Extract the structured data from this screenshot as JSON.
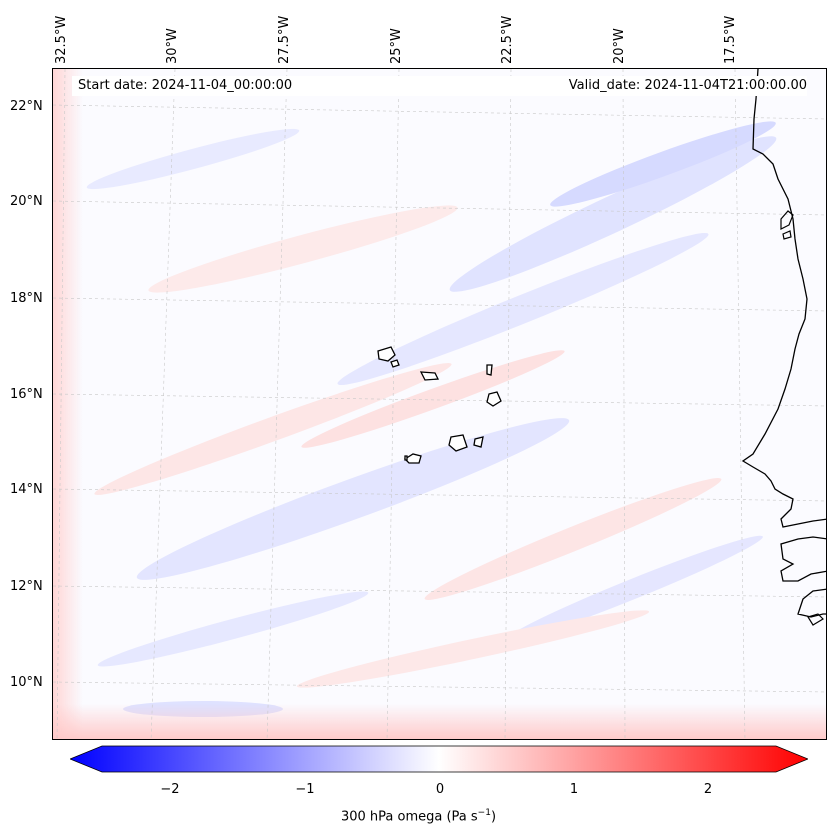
{
  "map": {
    "header": {
      "start_date": "Start date: 2024-11-04_00:00:00",
      "valid_date": "Valid_date: 2024-11-04T21:00:00.00"
    },
    "longitude_labels": [
      "32.5°W",
      "30°W",
      "27.5°W",
      "25°W",
      "22.5°W",
      "20°W",
      "17.5°W"
    ],
    "latitude_labels": [
      "22°N",
      "20°N",
      "18°N",
      "16°N",
      "14°N",
      "12°N",
      "10°N"
    ],
    "colorbar": {
      "ticks": [
        "−2",
        "−1",
        "0",
        "1",
        "2"
      ],
      "label": "300 hPa omega (Pa s",
      "label_superscript": "−1",
      "label_close": ")",
      "colors": {
        "negative": "#0000ff",
        "zero": "#ffffff",
        "positive": "#ff0000"
      }
    }
  }
}
